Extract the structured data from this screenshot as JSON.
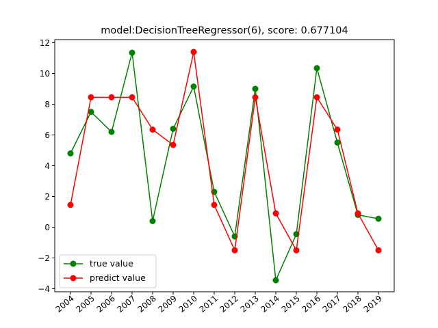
{
  "chart_data": {
    "type": "line",
    "title": "model:DecisionTreeRegressor(6), score: 0.677104",
    "xlabel": "",
    "ylabel": "",
    "x": [
      "2004",
      "2005",
      "2006",
      "2007",
      "2008",
      "2009",
      "2010",
      "2011",
      "2012",
      "2013",
      "2014",
      "2015",
      "2016",
      "2017",
      "2018",
      "2019"
    ],
    "ylim": [
      -4.2,
      12.2
    ],
    "yticks": [
      -4,
      -2,
      0,
      2,
      4,
      6,
      8,
      10,
      12
    ],
    "xtick_rotation_deg": 40,
    "grid": false,
    "legend_position": "lower-left",
    "series": [
      {
        "name": "true value",
        "color": "#008000",
        "marker": "circle",
        "values": [
          4.8,
          7.5,
          6.2,
          11.35,
          0.4,
          6.4,
          9.15,
          2.3,
          -0.6,
          9.0,
          -3.45,
          -0.45,
          10.35,
          5.5,
          0.8,
          0.55
        ]
      },
      {
        "name": "predict value",
        "color": "#ff0000",
        "marker": "circle",
        "values": [
          1.45,
          8.45,
          8.45,
          8.45,
          6.35,
          5.35,
          11.4,
          1.45,
          -1.5,
          8.45,
          0.9,
          -1.5,
          8.45,
          6.35,
          0.9,
          -1.5
        ]
      }
    ]
  }
}
